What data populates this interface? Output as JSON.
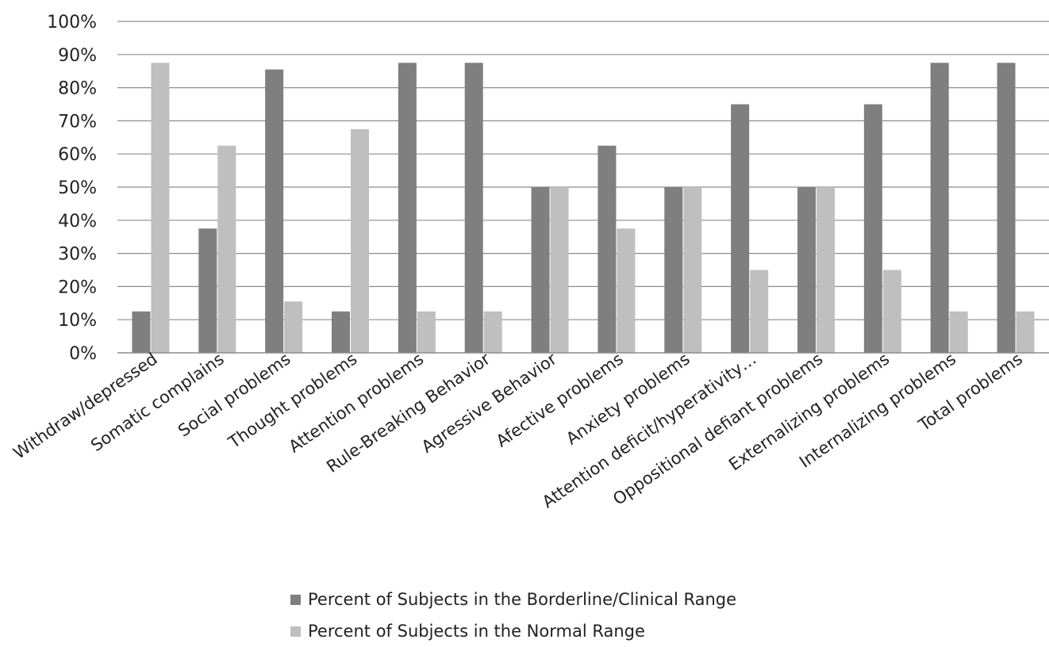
{
  "chart_data": {
    "type": "bar",
    "title": "",
    "xlabel": "",
    "ylabel": "",
    "ylim": [
      0,
      100
    ],
    "yticks": [
      0,
      10,
      20,
      30,
      40,
      50,
      60,
      70,
      80,
      90,
      100
    ],
    "y_tick_suffix": "%",
    "grid": true,
    "legend_position": "bottom",
    "categories": [
      "Withdraw/depressed",
      "Somatic complains",
      "Social problems",
      "Thought problems",
      "Attention problems",
      "Rule-Breaking Behavior",
      "Agressive Behavior",
      "Afective problems",
      "Anxiety problems",
      "Attention deficit/hyperativity…",
      "Oppositional defiant problems",
      "Externalizing problems",
      "Internalizing problems",
      "Total problems"
    ],
    "series": [
      {
        "name": "Percent of Subjects in the Borderline/Clinical Range",
        "color": "#7f7f7f",
        "values": [
          12.5,
          37.5,
          85.5,
          12.5,
          87.5,
          87.5,
          50,
          62.5,
          50,
          75,
          50,
          75,
          87.5,
          87.5
        ]
      },
      {
        "name": "Percent of Subjects in the Normal Range",
        "color": "#bfbfbf",
        "values": [
          87.5,
          62.5,
          15.5,
          67.5,
          12.5,
          12.5,
          50,
          37.5,
          50,
          25,
          50,
          25,
          12.5,
          12.5
        ]
      }
    ]
  }
}
